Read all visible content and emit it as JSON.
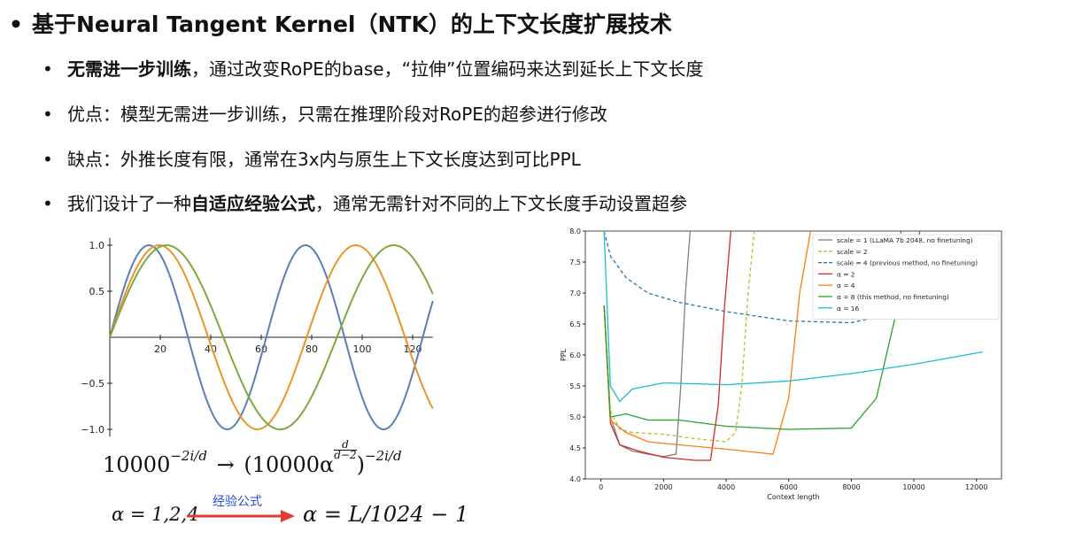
{
  "bullets": {
    "main": "基于Neural Tangent Kernel（NTK）的上下文长度扩展技术",
    "b1_bold": "无需进一步训练",
    "b1_rest": "，通过改变RoPE的base，“拉伸”位置编码来达到延长上下文长度",
    "b2": "优点：模型无需进一步训练，只需在推理阶段对RoPE的超参进行修改",
    "b3": "缺点：外推长度有限，通常在3x内与原生上下文长度达到可比PPL",
    "b4_pre": "我们设计了一种",
    "b4_bold": "自适应经验公式",
    "b4_post": "，通常无需针对不同的上下文长度手动设置超参",
    "dot": "•"
  },
  "formulas": {
    "f1_base": "10000",
    "f1_exp": "−2i/d",
    "f1_arrow": "→",
    "f1_rhs_open": "(10000α",
    "f1_frac_num": "d",
    "f1_frac_den": "d−2",
    "f1_rhs_close": ")",
    "f1_rhs_exp": "−2i/d",
    "f2_lhs": "α = 1,2,4",
    "f2_label": "经验公式",
    "f2_rhs": "α = L/1024 − 1"
  },
  "chart_data": [
    {
      "type": "line",
      "xlim": [
        0,
        128
      ],
      "ylim": [
        -1,
        1
      ],
      "x_ticks": [
        "20",
        "40",
        "60",
        "80",
        "100",
        "120"
      ],
      "y_ticks": [
        "1.0",
        "0.5",
        "−0.5",
        "−1.0"
      ],
      "series": [
        {
          "color": "#5b7fb5",
          "period": 62,
          "values_note": ""
        },
        {
          "color": "#e8952a",
          "period": 78
        },
        {
          "color": "#7fa83c",
          "period": 90
        }
      ]
    },
    {
      "type": "line",
      "xlabel": "Context length",
      "ylabel": "PPL",
      "xlim": [
        -500,
        12800
      ],
      "ylim": [
        4.0,
        8.0
      ],
      "x_ticks": [
        "0",
        "2000",
        "4000",
        "6000",
        "8000",
        "10000",
        "12000"
      ],
      "y_ticks": [
        "4.0",
        "4.5",
        "5.0",
        "5.5",
        "6.0",
        "6.5",
        "7.0",
        "7.5",
        "8.0"
      ],
      "legend": [
        {
          "label": "scale = 1 (LLaMA 7b 2048, no finetuning)",
          "color": "#7f7f7f",
          "dash": false
        },
        {
          "label": "scale = 2",
          "color": "#bcbd22",
          "dash": true
        },
        {
          "label": "scale = 4 (previous method, no finetuning)",
          "color": "#1f77b4",
          "dash": true
        },
        {
          "label": "α = 2",
          "color": "#d62728",
          "dash": false
        },
        {
          "label": "α = 4",
          "color": "#ff7f0e",
          "dash": false
        },
        {
          "label": "α = 8 (this method, no finetuning)",
          "color": "#2ca02c",
          "dash": false
        },
        {
          "label": "α = 16",
          "color": "#17becf",
          "dash": false
        }
      ],
      "series": [
        {
          "name": "scale = 1 (LLaMA 7b 2048, no finetuning)",
          "color": "#7f7f7f",
          "x": [
            100,
            300,
            600,
            1000,
            1500,
            2000,
            2400,
            2550,
            2700,
            2850
          ],
          "y": [
            6.8,
            5.0,
            4.55,
            4.45,
            4.4,
            4.36,
            4.4,
            5.5,
            7.0,
            8.0
          ]
        },
        {
          "name": "scale = 2",
          "color": "#bcbd22",
          "x": [
            100,
            300,
            600,
            1000,
            2000,
            3000,
            4000,
            4300,
            4500,
            4700,
            4900
          ],
          "y": [
            6.8,
            5.1,
            4.8,
            4.75,
            4.72,
            4.65,
            4.6,
            4.75,
            5.5,
            7.0,
            8.0
          ]
        },
        {
          "name": "scale = 4 (previous method, no finetuning)",
          "color": "#1f77b4",
          "x": [
            100,
            300,
            800,
            1500,
            2500,
            4000,
            6000,
            8000,
            8700,
            9200,
            9600
          ],
          "y": [
            8.0,
            7.6,
            7.25,
            7.0,
            6.85,
            6.7,
            6.55,
            6.52,
            6.6,
            7.3,
            8.0
          ]
        },
        {
          "name": "α = 2",
          "color": "#d62728",
          "x": [
            100,
            300,
            600,
            1200,
            2000,
            3000,
            3500,
            3750,
            3950,
            4150
          ],
          "y": [
            6.8,
            4.9,
            4.55,
            4.45,
            4.35,
            4.3,
            4.3,
            5.2,
            6.8,
            8.0
          ]
        },
        {
          "name": "α = 4",
          "color": "#ff7f0e",
          "x": [
            100,
            300,
            800,
            1500,
            2500,
            4000,
            5500,
            6000,
            6350,
            6700
          ],
          "y": [
            6.8,
            4.95,
            4.75,
            4.6,
            4.55,
            4.48,
            4.4,
            5.3,
            7.0,
            8.0
          ]
        },
        {
          "name": "α = 8 (this method, no finetuning)",
          "color": "#2ca02c",
          "x": [
            100,
            300,
            800,
            1500,
            2500,
            4000,
            6000,
            8000,
            8800,
            9400,
            10200
          ],
          "y": [
            6.8,
            5.0,
            5.05,
            4.95,
            4.95,
            4.85,
            4.8,
            4.82,
            5.3,
            6.6,
            8.0
          ]
        },
        {
          "name": "α = 16",
          "color": "#17becf",
          "x": [
            100,
            300,
            600,
            1000,
            2000,
            4000,
            6000,
            8000,
            10000,
            12200
          ],
          "y": [
            8.0,
            5.5,
            5.25,
            5.45,
            5.55,
            5.52,
            5.58,
            5.7,
            5.85,
            6.05
          ]
        }
      ]
    }
  ]
}
